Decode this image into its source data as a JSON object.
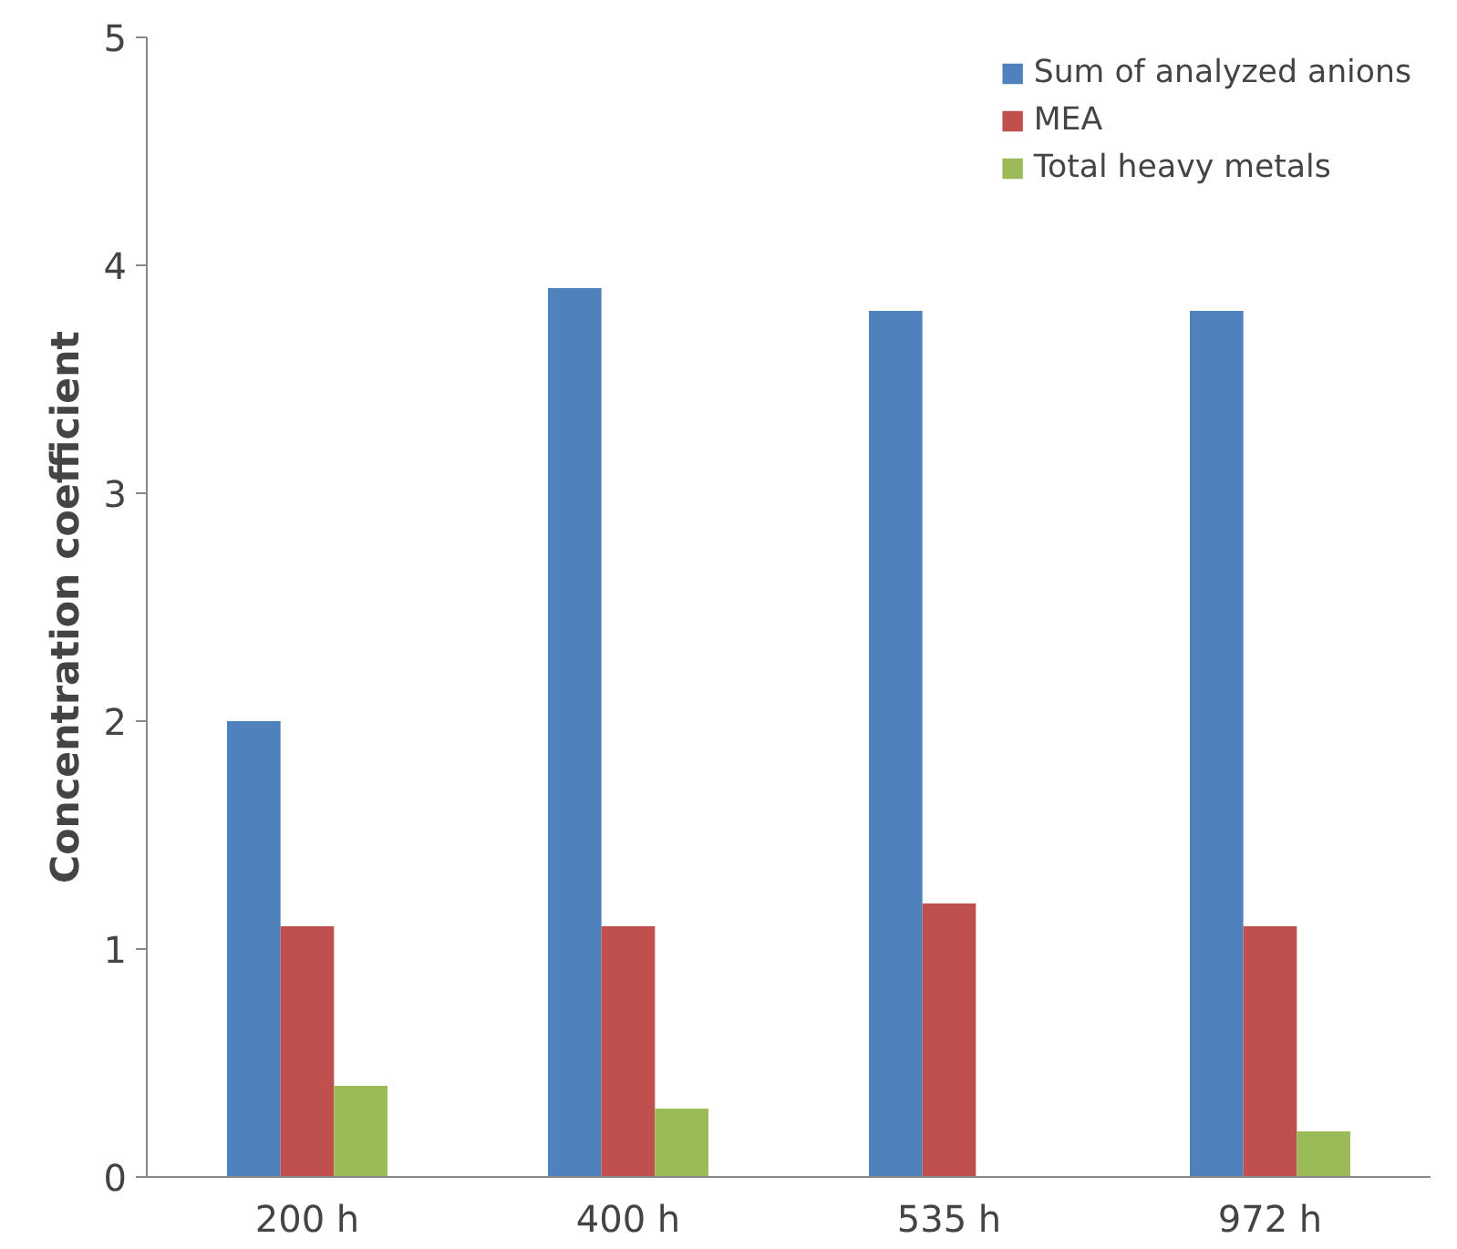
{
  "chart_data": {
    "type": "bar",
    "ylabel": "Concentration coefficient",
    "categories": [
      "200 h",
      "400 h",
      "535 h",
      "972 h"
    ],
    "series": [
      {
        "name": "Sum of analyzed anions",
        "color": "#4f81bd",
        "values": [
          2.0,
          3.9,
          3.8,
          3.8
        ]
      },
      {
        "name": "MEA",
        "color": "#c0504d",
        "values": [
          1.1,
          1.1,
          1.2,
          1.1
        ]
      },
      {
        "name": "Total heavy metals",
        "color": "#9bbb59",
        "values": [
          0.4,
          0.3,
          null,
          0.2
        ]
      }
    ],
    "ylim": [
      0,
      5
    ],
    "yticks": [
      0,
      1,
      2,
      3,
      4,
      5
    ],
    "grid": false,
    "legend": "top right"
  }
}
